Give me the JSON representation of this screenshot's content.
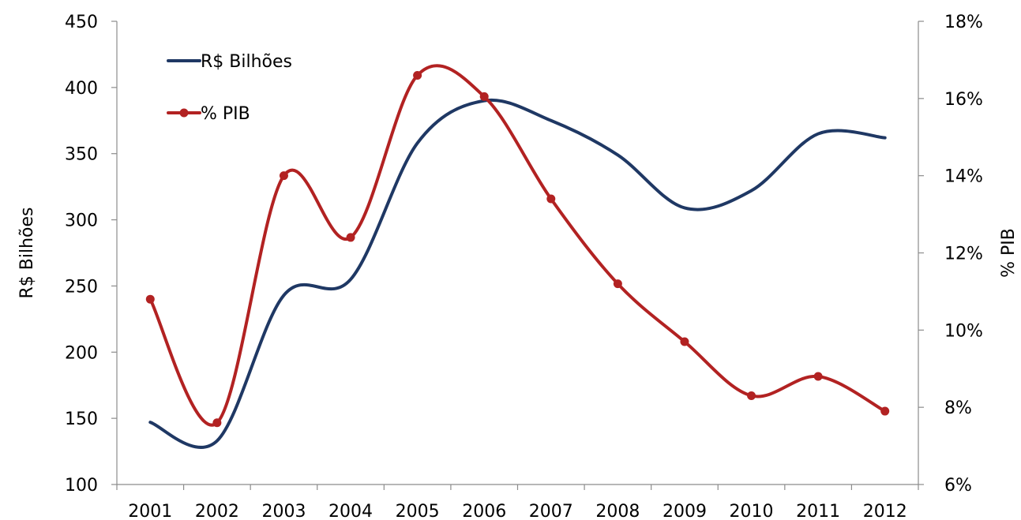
{
  "chart_data": {
    "type": "line",
    "categories": [
      "2001",
      "2002",
      "2003",
      "2004",
      "2005",
      "2006",
      "2007",
      "2008",
      "2009",
      "2010",
      "2011",
      "2012"
    ],
    "series": [
      {
        "name": "R$ Bilhões",
        "axis": "left",
        "color": "#1f3864",
        "marker": false,
        "smooth": true,
        "values": [
          147,
          133,
          243,
          255,
          358,
          390,
          375,
          349,
          309,
          322,
          365,
          362
        ]
      },
      {
        "name": "% PIB",
        "axis": "right",
        "color": "#b22222",
        "marker": true,
        "smooth": true,
        "values": [
          10.8,
          7.6,
          14.0,
          12.4,
          16.6,
          16.05,
          13.4,
          11.2,
          9.7,
          8.3,
          8.8,
          7.9
        ]
      }
    ],
    "y_left": {
      "label": "R$ Bilhões",
      "ylim": [
        100,
        450
      ],
      "ticks": [
        "100",
        "150",
        "200",
        "250",
        "300",
        "350",
        "400",
        "450"
      ]
    },
    "y_right": {
      "label": "% PIB",
      "ylim": [
        6,
        18
      ],
      "ticks": [
        "6%",
        "8%",
        "10%",
        "12%",
        "14%",
        "16%",
        "18%"
      ]
    },
    "grid": false,
    "legend_position": "top-left"
  }
}
